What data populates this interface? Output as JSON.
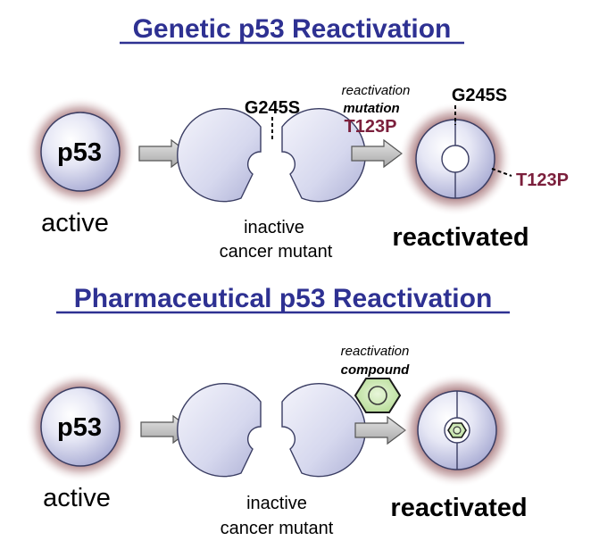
{
  "sections": [
    {
      "title": "Genetic p53 Reactivation",
      "protein_label": "p53",
      "active_label": "active",
      "mutation_label": "G245S",
      "mutant_label_1": "inactive",
      "mutant_label_2": "cancer mutant",
      "reactivation_label_1": "reactivation",
      "reactivation_label_2": "mutation",
      "rescue_label": "T123P",
      "reactivated_mutation_label": "G245S",
      "reactivated_rescue_label": "T123P",
      "reactivated_label": "reactivated"
    },
    {
      "title": "Pharmaceutical p53 Reactivation",
      "protein_label": "p53",
      "active_label": "active",
      "mutant_label_1": "inactive",
      "mutant_label_2": "cancer mutant",
      "reactivation_label_1": "reactivation",
      "reactivation_label_2": "compound",
      "reactivated_label": "reactivated"
    }
  ],
  "colors": {
    "title": "#2e3192",
    "protein_fill": "#d0d2ec",
    "protein_stroke": "#3a3d63",
    "glow": "#8b4f55",
    "arrow_fill": "#c4c4c4",
    "rescue_text": "#7b1f3c",
    "compound_fill": "#c8e6b0"
  }
}
